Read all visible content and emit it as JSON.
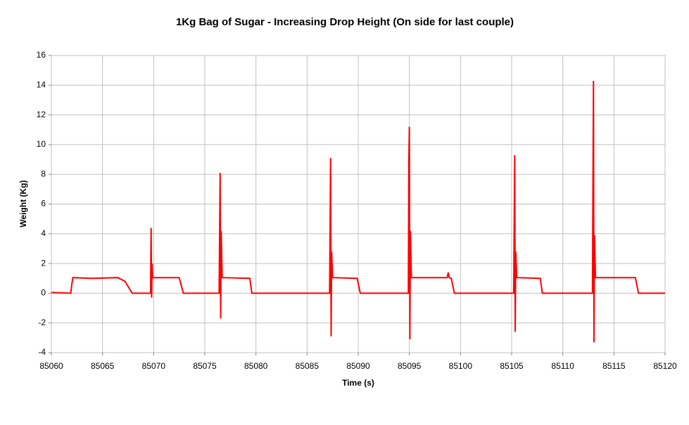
{
  "chart_data": {
    "type": "line",
    "title": "1Kg Bag of Sugar - Increasing Drop Height (On side for last couple)",
    "x_label": "Time (s)",
    "y_label": "Weight (Kg)",
    "x": [
      85060,
      85061.9,
      85062.0,
      85062.1,
      85064,
      85066.5,
      85067.2,
      85067.9,
      85069.7,
      85069.75,
      85069.8,
      85069.85,
      85069.9,
      85072.5,
      85072.9,
      85076.4,
      85076.5,
      85076.55,
      85076.6,
      85076.7,
      85079.4,
      85079.6,
      85087.2,
      85087.3,
      85087.35,
      85087.4,
      85087.5,
      85089.9,
      85090.2,
      85094.9,
      85094.95,
      85095.0,
      85095.05,
      85095.1,
      85095.2,
      85098.7,
      85098.8,
      85098.9,
      85099.1,
      85099.4,
      85105.2,
      85105.3,
      85105.35,
      85105.4,
      85105.5,
      85107.8,
      85108.0,
      85112.9,
      85113.0,
      85113.05,
      85113.1,
      85113.2,
      85117.1,
      85117.4,
      85120
    ],
    "values": [
      0.05,
      0,
      0.6,
      1.05,
      1.0,
      1.05,
      0.8,
      0,
      0,
      4.4,
      -0.3,
      2.0,
      1.05,
      1.05,
      0,
      0,
      8.1,
      -1.7,
      4.2,
      1.05,
      1.0,
      0,
      0,
      9.1,
      -2.9,
      2.8,
      1.05,
      1.0,
      0,
      0,
      9.0,
      11.2,
      -3.1,
      4.2,
      1.05,
      1.05,
      1.4,
      1.05,
      1.0,
      0,
      0,
      9.3,
      -2.6,
      2.8,
      1.05,
      1.0,
      0,
      0,
      14.3,
      -3.3,
      3.9,
      1.05,
      1.05,
      0,
      0
    ],
    "color": "#ff0000",
    "xlim": [
      85060,
      85120
    ],
    "xticks": [
      85060,
      85065,
      85070,
      85075,
      85080,
      85085,
      85090,
      85095,
      85100,
      85105,
      85110,
      85115,
      85120
    ],
    "ylim": [
      -4,
      16
    ],
    "yticks": [
      -4,
      -2,
      0,
      2,
      4,
      6,
      8,
      10,
      12,
      14,
      16
    ],
    "grid": true
  }
}
